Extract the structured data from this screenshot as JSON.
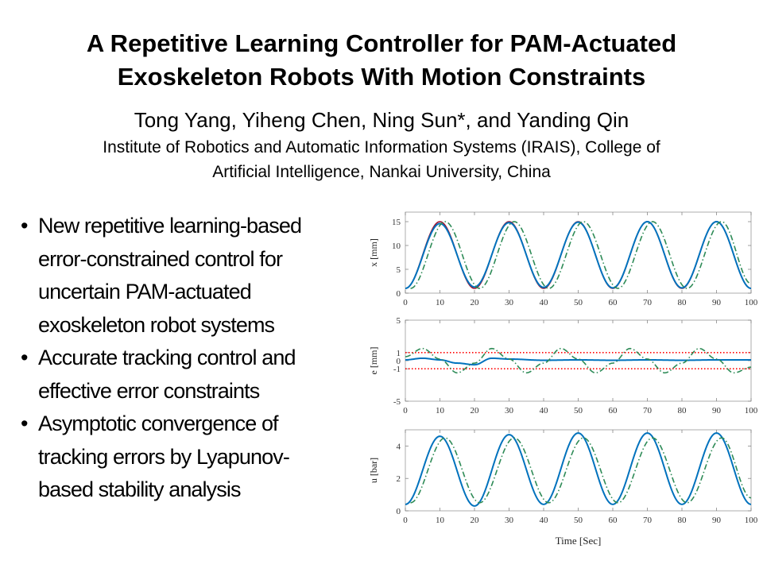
{
  "title": {
    "lines": [
      "A Repetitive Learning Controller for PAM-Actuated",
      "Exoskeleton Robots With Motion Constraints"
    ]
  },
  "authors": "Tong Yang, Yiheng Chen, Ning Sun*, and Yanding Qin",
  "affiliation": {
    "lines": [
      "Institute of Robotics and Automatic Information Systems (IRAIS), College of",
      "Artificial Intelligence, Nankai University, China"
    ]
  },
  "bullets": [
    {
      "lines": [
        "New repetitive learning-based",
        "error-constrained control for",
        "uncertain PAM-actuated",
        "exoskeleton robot systems"
      ]
    },
    {
      "lines": [
        "Accurate tracking control and",
        "effective error constraints"
      ]
    },
    {
      "lines": [
        "Asymptotic convergence of",
        "tracking errors by Lyapunov-",
        "based stability analysis"
      ]
    }
  ],
  "colors": {
    "actual": "#0072bd",
    "desired": "#2e8b57",
    "reference_x": "#a2142f",
    "bound": "#ff0000"
  },
  "chart_data": [
    {
      "type": "line",
      "ylabel": "x [mm]",
      "xlim": [
        0,
        100
      ],
      "ylim": [
        0,
        17
      ],
      "yticks": [
        0,
        5,
        10,
        15
      ],
      "xticks": [
        0,
        10,
        20,
        30,
        40,
        50,
        60,
        70,
        80,
        90,
        100
      ],
      "xlabel": "",
      "series": [
        {
          "role": "reference",
          "style": "solid",
          "color": "#a2142f",
          "x": [
            0,
            10,
            20,
            30,
            40,
            50,
            60,
            70,
            80,
            90,
            100
          ],
          "y": [
            1,
            15,
            1,
            15,
            1,
            15,
            1,
            15,
            1,
            15,
            1
          ]
        },
        {
          "role": "actual",
          "style": "solid",
          "color": "#0072bd",
          "x": [
            0,
            10,
            20,
            30,
            40,
            50,
            60,
            70,
            80,
            90,
            100
          ],
          "y": [
            1,
            14.6,
            1.3,
            14.8,
            1.2,
            14.9,
            1.1,
            15,
            1.1,
            15,
            1
          ]
        },
        {
          "role": "desired",
          "style": "dash-dot",
          "color": "#2e8b57",
          "x": [
            1.5,
            11.5,
            21.5,
            31.5,
            41.5,
            51.5,
            61.5,
            71.5,
            81.5,
            91.5,
            100
          ],
          "y": [
            1,
            15,
            1,
            15,
            1,
            15,
            1,
            15,
            1,
            15,
            2
          ]
        }
      ]
    },
    {
      "type": "line",
      "ylabel": "e [mm]",
      "xlim": [
        0,
        100
      ],
      "ylim": [
        -5,
        5
      ],
      "yticks": [
        -5,
        -1,
        0,
        1,
        5
      ],
      "xticks": [
        0,
        10,
        20,
        30,
        40,
        50,
        60,
        70,
        80,
        90,
        100
      ],
      "xlabel": "",
      "series": [
        {
          "role": "upper-bound",
          "style": "dotted",
          "color": "#ff0000",
          "x": [
            0,
            100
          ],
          "y": [
            1,
            1
          ]
        },
        {
          "role": "lower-bound",
          "style": "dotted",
          "color": "#ff0000",
          "x": [
            0,
            100
          ],
          "y": [
            -1,
            -1
          ]
        },
        {
          "role": "error",
          "style": "solid",
          "color": "#0072bd",
          "x": [
            0,
            5,
            10,
            15,
            20,
            25,
            30,
            40,
            50,
            60,
            70,
            80,
            90,
            100
          ],
          "y": [
            0.1,
            0.3,
            0.1,
            -0.3,
            -0.5,
            0.3,
            0.2,
            0.05,
            0.1,
            0.05,
            0.1,
            0.05,
            0.1,
            0.1
          ]
        },
        {
          "role": "comparison",
          "style": "dash-dot",
          "color": "#2e8b57",
          "x": [
            0,
            5,
            10,
            15,
            20,
            25,
            30,
            35,
            40,
            45,
            50,
            55,
            60,
            65,
            70,
            75,
            80,
            85,
            90,
            95,
            100
          ],
          "y": [
            0.5,
            1.5,
            0.2,
            -1.5,
            -0.3,
            1.5,
            0.2,
            -1.5,
            -0.3,
            1.5,
            0.2,
            -1.5,
            -0.3,
            1.5,
            0.2,
            -1.5,
            -0.3,
            1.5,
            0.2,
            -1.5,
            -0.8
          ]
        }
      ]
    },
    {
      "type": "line",
      "ylabel": "u [bar]",
      "xlabel": "Time [Sec]",
      "xlim": [
        0,
        100
      ],
      "ylim": [
        0,
        5
      ],
      "yticks": [
        0,
        2,
        4
      ],
      "xticks": [
        0,
        10,
        20,
        30,
        40,
        50,
        60,
        70,
        80,
        90,
        100
      ],
      "series": [
        {
          "role": "actual",
          "style": "solid",
          "color": "#0072bd",
          "x": [
            0,
            10,
            20,
            30,
            40,
            50,
            60,
            70,
            80,
            90,
            100
          ],
          "y": [
            0.4,
            4.6,
            0.3,
            4.7,
            0.4,
            4.8,
            0.4,
            4.8,
            0.4,
            4.8,
            0.4
          ]
        },
        {
          "role": "desired",
          "style": "dash-dot",
          "color": "#2e8b57",
          "x": [
            1.5,
            11.5,
            21.5,
            31.5,
            41.5,
            51.5,
            61.5,
            71.5,
            81.5,
            91.5,
            100
          ],
          "y": [
            0.5,
            4.5,
            0.5,
            4.5,
            0.5,
            4.5,
            0.5,
            4.5,
            0.5,
            4.5,
            0.8
          ]
        }
      ]
    }
  ]
}
